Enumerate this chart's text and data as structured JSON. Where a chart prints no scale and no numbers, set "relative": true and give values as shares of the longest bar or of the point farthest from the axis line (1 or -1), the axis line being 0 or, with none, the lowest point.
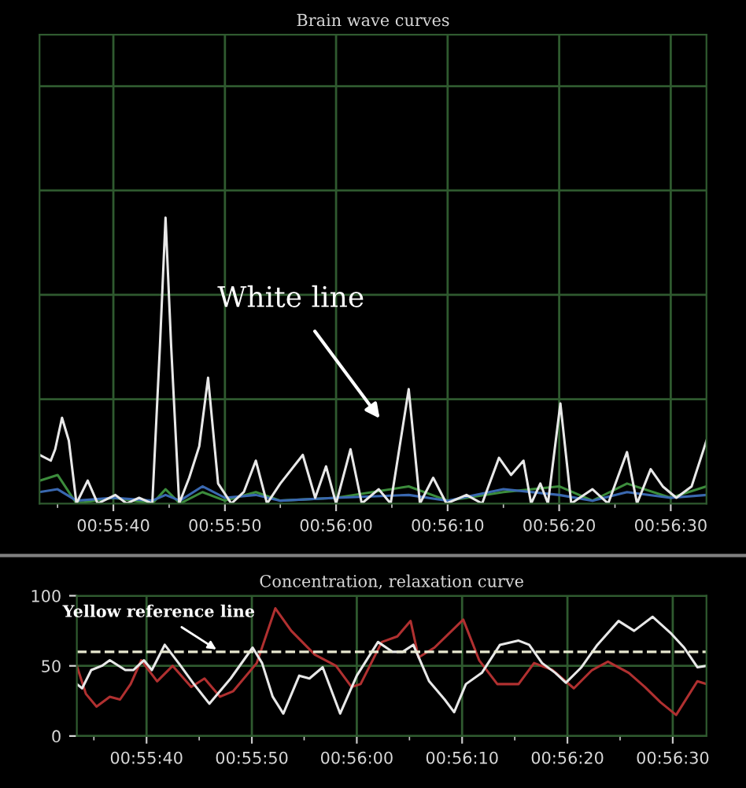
{
  "chart_data": [
    {
      "type": "line",
      "title": "Brain wave curves",
      "relative": true,
      "grid": true,
      "legend": false,
      "tick_labels": "x",
      "line_style": "solid",
      "marker": "none",
      "xlim": [
        0.92594,
        0.94256
      ],
      "xticks": [
        {
          "value": 0.92639,
          "label": null
        },
        {
          "value": 0.92778,
          "label": "00:55:40"
        },
        {
          "value": 0.92917,
          "label": null
        },
        {
          "value": 0.93056,
          "label": "00:55:50"
        },
        {
          "value": 0.93194,
          "label": null
        },
        {
          "value": 0.93333,
          "label": "00:56:00"
        },
        {
          "value": 0.93472,
          "label": null
        },
        {
          "value": 0.93611,
          "label": "00:56:10"
        },
        {
          "value": 0.9375,
          "label": null
        },
        {
          "value": 0.93889,
          "label": "00:56:20"
        },
        {
          "value": 0.94028,
          "label": null
        },
        {
          "value": 0.94167,
          "label": "00:56:30"
        }
      ],
      "series": [
        {
          "color": "#3c8c3c",
          "x": [
            0.92594,
            0.92639,
            0.92686,
            0.92778,
            0.92875,
            0.92908,
            0.92944,
            0.93,
            0.93056,
            0.93133,
            0.93194,
            0.93333,
            0.93514,
            0.93611,
            0.9375,
            0.93889,
            0.93972,
            0.94058,
            0.94167,
            0.94256
          ],
          "values": [
            0.08,
            0.1,
            0,
            0.02,
            0,
            0.05,
            0,
            0.04,
            0.01,
            0.04,
            0.01,
            0.02,
            0.06,
            0.01,
            0.04,
            0.06,
            0.01,
            0.07,
            0.02,
            0.06
          ]
        },
        {
          "color": "#3a68b0",
          "x": [
            0.92594,
            0.92639,
            0.92686,
            0.92778,
            0.92875,
            0.92908,
            0.92944,
            0.93,
            0.93056,
            0.93133,
            0.93194,
            0.93333,
            0.93514,
            0.93611,
            0.9375,
            0.93889,
            0.93972,
            0.94058,
            0.94167,
            0.94256
          ],
          "values": [
            0.04,
            0.05,
            0.01,
            0.02,
            0.01,
            0.03,
            0.01,
            0.06,
            0.02,
            0.03,
            0.01,
            0.02,
            0.03,
            0.01,
            0.05,
            0.03,
            0.01,
            0.04,
            0.02,
            0.03
          ]
        },
        {
          "color": "#e8e8e8",
          "x": [
            0.92594,
            0.92622,
            0.92633,
            0.9265,
            0.92667,
            0.92686,
            0.92714,
            0.92739,
            0.92783,
            0.92811,
            0.92842,
            0.92875,
            0.92894,
            0.92908,
            0.92922,
            0.92942,
            0.92967,
            0.92992,
            0.93014,
            0.93039,
            0.93072,
            0.93103,
            0.93133,
            0.93161,
            0.93194,
            0.9325,
            0.93281,
            0.93308,
            0.93333,
            0.93369,
            0.93397,
            0.93439,
            0.93469,
            0.93514,
            0.93542,
            0.93575,
            0.93608,
            0.93658,
            0.93697,
            0.93739,
            0.93769,
            0.938,
            0.93819,
            0.93842,
            0.93861,
            0.93892,
            0.93919,
            0.93972,
            0.94011,
            0.94058,
            0.94083,
            0.94117,
            0.94147,
            0.94181,
            0.94219,
            0.94256
          ],
          "values": [
            0.17,
            0.15,
            0.19,
            0.3,
            0.22,
            0,
            0.08,
            0,
            0.03,
            0,
            0.02,
            0,
            0.55,
            1,
            0.55,
            0,
            0.09,
            0.2,
            0.44,
            0.07,
            0,
            0.04,
            0.15,
            0,
            0.07,
            0.17,
            0.02,
            0.13,
            0,
            0.19,
            0,
            0.05,
            0,
            0.4,
            0,
            0.09,
            0,
            0.03,
            0,
            0.16,
            0.1,
            0.15,
            0,
            0.07,
            0,
            0.35,
            0,
            0.05,
            0,
            0.18,
            0,
            0.12,
            0.06,
            0.02,
            0.06,
            0.22
          ]
        }
      ],
      "annotations": [
        "White line"
      ]
    },
    {
      "type": "line",
      "title": "Concentration, relaxation curve",
      "grid": true,
      "legend": false,
      "line_style": "solid",
      "marker": "none",
      "xlim": [
        0.92594,
        0.94256
      ],
      "ylim": [
        0,
        100
      ],
      "yticks": [
        0,
        50,
        100
      ],
      "xticks": [
        {
          "value": 0.92639,
          "label": null
        },
        {
          "value": 0.92778,
          "label": "00:55:40"
        },
        {
          "value": 0.92917,
          "label": null
        },
        {
          "value": 0.93056,
          "label": "00:55:50"
        },
        {
          "value": 0.93194,
          "label": null
        },
        {
          "value": 0.93333,
          "label": "00:56:00"
        },
        {
          "value": 0.93472,
          "label": null
        },
        {
          "value": 0.93611,
          "label": "00:56:10"
        },
        {
          "value": 0.9375,
          "label": null
        },
        {
          "value": 0.93889,
          "label": "00:56:20"
        },
        {
          "value": 0.94028,
          "label": null
        },
        {
          "value": 0.94167,
          "label": "00:56:30"
        }
      ],
      "series": [
        {
          "color": "#b03030",
          "x": [
            0.92594,
            0.92618,
            0.92646,
            0.92681,
            0.92708,
            0.92736,
            0.92764,
            0.92806,
            0.92847,
            0.92896,
            0.92931,
            0.92972,
            0.93007,
            0.93069,
            0.93118,
            0.9316,
            0.93222,
            0.93278,
            0.93319,
            0.93343,
            0.93399,
            0.9344,
            0.93475,
            0.93496,
            0.93538,
            0.93614,
            0.93656,
            0.93704,
            0.9376,
            0.93801,
            0.9385,
            0.93906,
            0.93954,
            0.93996,
            0.94051,
            0.94093,
            0.94135,
            0.94176,
            0.94232,
            0.94256
          ],
          "values": [
            50,
            30,
            21,
            28,
            26,
            37,
            54,
            39,
            50,
            35,
            41,
            28,
            32,
            52,
            91,
            75,
            58,
            50,
            35,
            37,
            67,
            71,
            82,
            56,
            63,
            83,
            54,
            37,
            37,
            52,
            47,
            34,
            47,
            53,
            45,
            35,
            24,
            15,
            39,
            37
          ]
        },
        {
          "color": "#e8e8e8",
          "x": [
            0.92594,
            0.92608,
            0.92632,
            0.9266,
            0.92681,
            0.92722,
            0.92743,
            0.92771,
            0.92792,
            0.92826,
            0.92868,
            0.92903,
            0.92944,
            0.93,
            0.93058,
            0.93083,
            0.93111,
            0.93139,
            0.93181,
            0.93208,
            0.93243,
            0.93289,
            0.93333,
            0.93389,
            0.93427,
            0.93454,
            0.93482,
            0.93524,
            0.93565,
            0.9359,
            0.93621,
            0.93663,
            0.93711,
            0.9376,
            0.93788,
            0.93822,
            0.93857,
            0.93885,
            0.93926,
            0.93968,
            0.94024,
            0.94065,
            0.94114,
            0.94163,
            0.94197,
            0.94232,
            0.94256
          ],
          "values": [
            37,
            34,
            47,
            50,
            54,
            47,
            47,
            54,
            47,
            65,
            50,
            37,
            23,
            41,
            63,
            52,
            28,
            16,
            43,
            41,
            49,
            16,
            43,
            67,
            60,
            60,
            65,
            39,
            26,
            17,
            37,
            45,
            65,
            68,
            65,
            52,
            45,
            38,
            49,
            65,
            82,
            75,
            85,
            73,
            63,
            49,
            50
          ]
        }
      ],
      "ref_lines": [
        {
          "axis": "y",
          "value": 60,
          "color": "#e8e8d0",
          "line_style": "dashed"
        }
      ],
      "annotations": [
        {
          "text": "Yellow reference line",
          "x": 0.92972,
          "y": 60
        }
      ]
    }
  ]
}
